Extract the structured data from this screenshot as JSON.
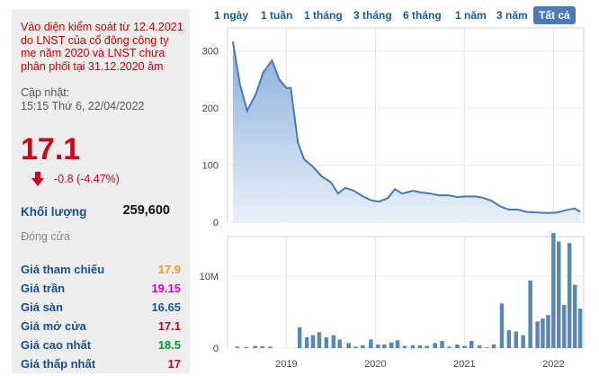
{
  "notice": "Vào diện kiểm soát từ 12.4.2021 do LNST của cổ đông công ty mẹ năm 2020 và LNST chưa phân phối tại 31.12.2020 âm",
  "updated_label": "Cập nhật:",
  "updated_time": "15:15 Thứ 6, 22/04/2022",
  "price": "17.1",
  "change": "-0.8 (-4.47%)",
  "volume_label": "Khối lượng",
  "volume_value": "259,600",
  "close_label": "Đóng cửa",
  "colors": {
    "price_down": "#d0021b",
    "ref": "#f7941d",
    "ceiling": "#d400d4",
    "floor": "#1a5a96",
    "up": "#009933",
    "line": "#4a7ab5",
    "bar": "#5a87b5"
  },
  "stats": [
    {
      "label": "Giá tham chiếu",
      "value": "17.9",
      "color": "#f7941d"
    },
    {
      "label": "Giá trần",
      "value": "19.15",
      "color": "#d400d4"
    },
    {
      "label": "Giá sàn",
      "value": "16.65",
      "color": "#1a5a96"
    },
    {
      "label": "Giá mở cửa",
      "value": "17.1",
      "color": "#d0021b"
    },
    {
      "label": "Giá cao nhất",
      "value": "18.5",
      "color": "#009933"
    },
    {
      "label": "Giá thấp nhất",
      "value": "17",
      "color": "#d0021b"
    }
  ],
  "tabs": [
    "1 ngày",
    "1 tuần",
    "1 tháng",
    "3 tháng",
    "6 tháng",
    "1 năm",
    "3 năm",
    "Tất cả"
  ],
  "active_tab": "Tất cả",
  "chart_data": [
    {
      "type": "area",
      "ylim": [
        0,
        340
      ],
      "y_ticks": [
        0,
        100,
        200,
        300
      ],
      "x": [
        2018.4,
        2018.48,
        2018.56,
        2018.66,
        2018.74,
        2018.84,
        2018.92,
        2019.0,
        2019.05,
        2019.13,
        2019.2,
        2019.3,
        2019.4,
        2019.5,
        2019.58,
        2019.66,
        2019.76,
        2019.86,
        2019.96,
        2020.04,
        2020.14,
        2020.22,
        2020.3,
        2020.42,
        2020.52,
        2020.62,
        2020.72,
        2020.82,
        2020.92,
        2021.02,
        2021.12,
        2021.2,
        2021.3,
        2021.4,
        2021.5,
        2021.6,
        2021.7,
        2021.82,
        2021.94,
        2022.04,
        2022.14,
        2022.24,
        2022.3
      ],
      "values": [
        316,
        240,
        195,
        225,
        262,
        283,
        250,
        235,
        235,
        140,
        110,
        97,
        80,
        70,
        50,
        60,
        55,
        45,
        38,
        36,
        42,
        58,
        50,
        55,
        52,
        50,
        47,
        47,
        44,
        45,
        45,
        43,
        38,
        28,
        22,
        22,
        18,
        17,
        16,
        17,
        21,
        24,
        18
      ]
    },
    {
      "type": "bar",
      "ylim": [
        0,
        15500000
      ],
      "y_ticks": [
        0,
        10000000
      ],
      "y_tick_labels": [
        "0",
        "10M"
      ],
      "x_ticks": [
        2019,
        2020,
        2021,
        2022
      ],
      "x": [
        2018.45,
        2018.55,
        2018.65,
        2018.73,
        2018.82,
        2019.15,
        2019.23,
        2019.3,
        2019.37,
        2019.45,
        2019.53,
        2019.6,
        2019.7,
        2019.78,
        2019.86,
        2019.95,
        2020.03,
        2020.1,
        2020.18,
        2020.25,
        2020.33,
        2020.42,
        2020.5,
        2020.58,
        2020.67,
        2020.75,
        2020.83,
        2020.92,
        2021.0,
        2021.08,
        2021.17,
        2021.25,
        2021.33,
        2021.42,
        2021.5,
        2021.58,
        2021.66,
        2021.74,
        2021.82,
        2021.88,
        2021.94,
        2022.0,
        2022.06,
        2022.12,
        2022.18,
        2022.24,
        2022.3
      ],
      "values": [
        200000,
        150000,
        300000,
        250000,
        200000,
        2900000,
        1500000,
        1800000,
        2200000,
        1500000,
        1800000,
        1200000,
        700000,
        200000,
        400000,
        1200000,
        500000,
        500000,
        800000,
        1100000,
        300000,
        400000,
        400000,
        300000,
        700000,
        1000000,
        200000,
        500000,
        300000,
        1000000,
        400000,
        100000,
        500000,
        6200000,
        2500000,
        2300000,
        1800000,
        9400000,
        3700000,
        4100000,
        4600000,
        16000000,
        14800000,
        6000000,
        14600000,
        8800000,
        5500000
      ]
    }
  ]
}
